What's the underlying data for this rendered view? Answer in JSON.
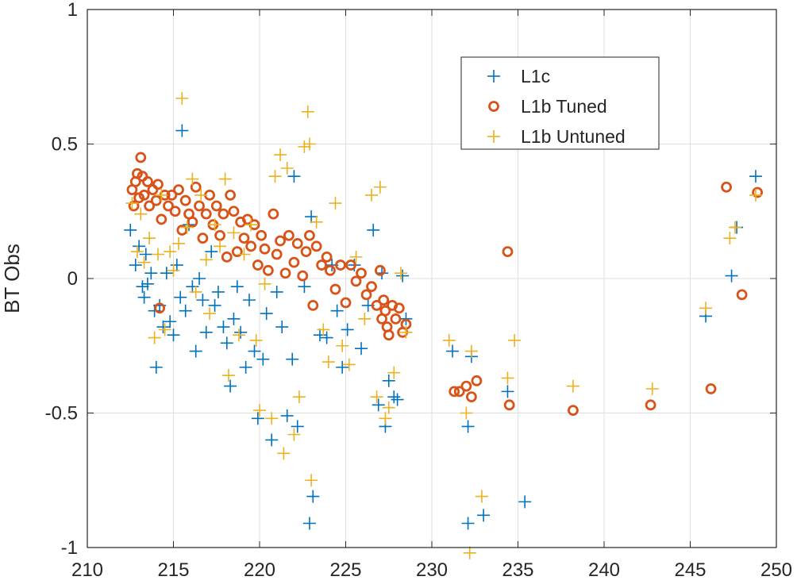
{
  "chart_data": {
    "type": "scatter",
    "title": "",
    "xlabel": "",
    "ylabel": "BT Obs",
    "xlim": [
      210,
      250
    ],
    "ylim": [
      -1,
      1
    ],
    "xticks": [
      210,
      215,
      220,
      225,
      230,
      235,
      240,
      245,
      250
    ],
    "yticks": [
      -1,
      -0.5,
      0,
      0.5,
      1
    ],
    "xtick_labels": [
      "210",
      "215",
      "220",
      "225",
      "230",
      "235",
      "240",
      "245",
      "250"
    ],
    "ytick_labels": [
      "-1",
      "-0.5",
      "0",
      "0.5",
      "1"
    ],
    "grid": true,
    "legend_position": "top-right",
    "series": [
      {
        "name": "L1c",
        "color": "#0072bd",
        "marker": "plus",
        "points": [
          [
            212.5,
            0.18
          ],
          [
            212.8,
            0.05
          ],
          [
            213.0,
            0.12
          ],
          [
            213.2,
            -0.03
          ],
          [
            213.5,
            -0.02
          ],
          [
            213.3,
            -0.07
          ],
          [
            213.7,
            0.02
          ],
          [
            213.4,
            0.09
          ],
          [
            213.9,
            -0.12
          ],
          [
            214.0,
            -0.33
          ],
          [
            214.2,
            -0.1
          ],
          [
            214.4,
            -0.18
          ],
          [
            214.6,
            0.02
          ],
          [
            214.8,
            -0.16
          ],
          [
            215.0,
            -0.21
          ],
          [
            215.2,
            0.05
          ],
          [
            215.5,
            0.55
          ],
          [
            215.4,
            -0.07
          ],
          [
            215.7,
            -0.12
          ],
          [
            215.9,
            0.2
          ],
          [
            216.1,
            -0.03
          ],
          [
            216.3,
            -0.27
          ],
          [
            216.5,
            0.0
          ],
          [
            216.7,
            -0.08
          ],
          [
            216.9,
            -0.2
          ],
          [
            217.2,
            0.1
          ],
          [
            217.4,
            -0.1
          ],
          [
            217.6,
            -0.05
          ],
          [
            217.9,
            -0.18
          ],
          [
            218.1,
            -0.24
          ],
          [
            218.3,
            -0.4
          ],
          [
            218.5,
            -0.15
          ],
          [
            218.7,
            -0.03
          ],
          [
            218.9,
            -0.2
          ],
          [
            219.2,
            -0.33
          ],
          [
            219.4,
            -0.08
          ],
          [
            219.7,
            -0.27
          ],
          [
            219.9,
            -0.52
          ],
          [
            220.2,
            -0.3
          ],
          [
            220.4,
            -0.13
          ],
          [
            220.7,
            -0.6
          ],
          [
            221.0,
            -0.05
          ],
          [
            221.3,
            -0.18
          ],
          [
            221.6,
            -0.51
          ],
          [
            221.9,
            -0.3
          ],
          [
            222.0,
            0.38
          ],
          [
            222.2,
            -0.55
          ],
          [
            222.6,
            -0.03
          ],
          [
            222.9,
            -0.91
          ],
          [
            223.1,
            -0.81
          ],
          [
            223.0,
            0.23
          ],
          [
            223.5,
            -0.21
          ],
          [
            223.9,
            -0.22
          ],
          [
            224.2,
            0.05
          ],
          [
            224.5,
            -0.12
          ],
          [
            224.8,
            -0.33
          ],
          [
            225.1,
            -0.19
          ],
          [
            225.5,
            0.05
          ],
          [
            225.9,
            -0.26
          ],
          [
            226.3,
            -0.1
          ],
          [
            226.6,
            0.18
          ],
          [
            226.9,
            -0.47
          ],
          [
            227.1,
            0.02
          ],
          [
            227.3,
            -0.55
          ],
          [
            227.5,
            -0.38
          ],
          [
            227.8,
            -0.44
          ],
          [
            228.0,
            -0.45
          ],
          [
            228.3,
            0.01
          ],
          [
            228.5,
            -0.15
          ],
          [
            231.2,
            -0.27
          ],
          [
            232.1,
            -0.55
          ],
          [
            232.1,
            -0.91
          ],
          [
            232.3,
            -0.29
          ],
          [
            233.0,
            -0.88
          ],
          [
            234.4,
            -0.42
          ],
          [
            235.4,
            -0.83
          ],
          [
            245.9,
            -0.14
          ],
          [
            247.4,
            0.01
          ],
          [
            247.7,
            0.19
          ],
          [
            248.8,
            0.38
          ]
        ]
      },
      {
        "name": "L1b Tuned",
        "color": "#d95319",
        "marker": "circle",
        "points": [
          [
            212.6,
            0.33
          ],
          [
            212.7,
            0.27
          ],
          [
            212.8,
            0.36
          ],
          [
            212.9,
            0.39
          ],
          [
            213.0,
            0.3
          ],
          [
            213.1,
            0.45
          ],
          [
            213.2,
            0.38
          ],
          [
            213.3,
            0.31
          ],
          [
            213.5,
            0.36
          ],
          [
            213.6,
            0.27
          ],
          [
            213.8,
            0.33
          ],
          [
            214.0,
            0.29
          ],
          [
            214.1,
            0.35
          ],
          [
            214.2,
            -0.11
          ],
          [
            214.3,
            0.22
          ],
          [
            214.5,
            0.31
          ],
          [
            214.7,
            0.27
          ],
          [
            214.9,
            0.31
          ],
          [
            215.1,
            0.25
          ],
          [
            215.3,
            0.33
          ],
          [
            215.5,
            0.18
          ],
          [
            215.7,
            0.29
          ],
          [
            215.9,
            0.24
          ],
          [
            216.1,
            0.21
          ],
          [
            216.3,
            0.34
          ],
          [
            216.5,
            0.27
          ],
          [
            216.7,
            0.15
          ],
          [
            216.9,
            0.24
          ],
          [
            217.1,
            0.31
          ],
          [
            217.3,
            0.2
          ],
          [
            217.5,
            0.27
          ],
          [
            217.7,
            0.16
          ],
          [
            217.9,
            0.24
          ],
          [
            218.1,
            0.08
          ],
          [
            218.3,
            0.31
          ],
          [
            218.5,
            0.25
          ],
          [
            218.7,
            0.1
          ],
          [
            218.9,
            0.21
          ],
          [
            219.1,
            0.15
          ],
          [
            219.3,
            0.22
          ],
          [
            219.5,
            0.12
          ],
          [
            219.7,
            0.2
          ],
          [
            219.9,
            0.05
          ],
          [
            220.1,
            0.16
          ],
          [
            220.3,
            0.11
          ],
          [
            220.5,
            0.03
          ],
          [
            220.8,
            0.24
          ],
          [
            221.0,
            0.09
          ],
          [
            221.2,
            0.14
          ],
          [
            221.5,
            0.02
          ],
          [
            221.7,
            0.16
          ],
          [
            222.0,
            0.06
          ],
          [
            222.2,
            0.13
          ],
          [
            222.5,
            0.01
          ],
          [
            222.7,
            0.1
          ],
          [
            222.9,
            0.16
          ],
          [
            223.1,
            -0.1
          ],
          [
            223.3,
            0.12
          ],
          [
            223.6,
            0.05
          ],
          [
            223.9,
            0.08
          ],
          [
            224.1,
            0.03
          ],
          [
            224.4,
            -0.04
          ],
          [
            224.7,
            0.05
          ],
          [
            225.0,
            -0.09
          ],
          [
            225.3,
            0.05
          ],
          [
            225.6,
            -0.01
          ],
          [
            225.9,
            0.02
          ],
          [
            226.2,
            -0.06
          ],
          [
            226.5,
            -0.03
          ],
          [
            226.8,
            -0.1
          ],
          [
            227.0,
            0.03
          ],
          [
            227.1,
            -0.15
          ],
          [
            227.2,
            -0.08
          ],
          [
            227.3,
            -0.12
          ],
          [
            227.4,
            -0.18
          ],
          [
            227.5,
            -0.21
          ],
          [
            227.7,
            -0.1
          ],
          [
            227.9,
            -0.15
          ],
          [
            228.1,
            -0.11
          ],
          [
            228.3,
            -0.2
          ],
          [
            228.5,
            -0.17
          ],
          [
            231.3,
            -0.42
          ],
          [
            231.6,
            -0.42
          ],
          [
            232.0,
            -0.4
          ],
          [
            232.3,
            -0.44
          ],
          [
            232.6,
            -0.38
          ],
          [
            234.4,
            0.1
          ],
          [
            234.5,
            -0.47
          ],
          [
            238.2,
            -0.49
          ],
          [
            242.7,
            -0.47
          ],
          [
            246.2,
            -0.41
          ],
          [
            247.1,
            0.34
          ],
          [
            248.0,
            -0.06
          ],
          [
            248.9,
            0.32
          ]
        ]
      },
      {
        "name": "L1b Untuned",
        "color": "#edb120",
        "marker": "plus",
        "points": [
          [
            212.6,
            0.28
          ],
          [
            212.9,
            0.1
          ],
          [
            213.1,
            0.24
          ],
          [
            213.3,
            0.06
          ],
          [
            213.6,
            0.15
          ],
          [
            213.9,
            -0.22
          ],
          [
            214.1,
            0.09
          ],
          [
            214.3,
            0.31
          ],
          [
            214.5,
            -0.19
          ],
          [
            214.8,
            0.1
          ],
          [
            215.0,
            0.03
          ],
          [
            215.3,
            0.13
          ],
          [
            215.5,
            0.67
          ],
          [
            215.8,
            0.19
          ],
          [
            216.1,
            0.37
          ],
          [
            216.3,
            -0.05
          ],
          [
            216.6,
            0.31
          ],
          [
            216.9,
            0.07
          ],
          [
            217.1,
            -0.13
          ],
          [
            217.4,
            0.2
          ],
          [
            217.7,
            0.12
          ],
          [
            218.0,
            0.37
          ],
          [
            218.2,
            -0.36
          ],
          [
            218.5,
            0.17
          ],
          [
            218.8,
            -0.21
          ],
          [
            219.1,
            0.09
          ],
          [
            219.5,
            0.2
          ],
          [
            219.8,
            -0.23
          ],
          [
            220.0,
            -0.49
          ],
          [
            220.3,
            -0.02
          ],
          [
            220.7,
            -0.52
          ],
          [
            220.9,
            0.38
          ],
          [
            221.2,
            0.46
          ],
          [
            221.4,
            -0.65
          ],
          [
            221.6,
            0.41
          ],
          [
            222.0,
            -0.58
          ],
          [
            222.3,
            -0.44
          ],
          [
            222.6,
            0.49
          ],
          [
            222.8,
            0.62
          ],
          [
            222.9,
            0.5
          ],
          [
            223.0,
            -0.75
          ],
          [
            223.3,
            0.21
          ],
          [
            223.7,
            -0.19
          ],
          [
            224.0,
            -0.31
          ],
          [
            224.4,
            0.28
          ],
          [
            224.8,
            -0.25
          ],
          [
            225.2,
            -0.32
          ],
          [
            225.6,
            0.08
          ],
          [
            226.1,
            -0.15
          ],
          [
            226.5,
            0.31
          ],
          [
            226.8,
            -0.44
          ],
          [
            227.0,
            0.34
          ],
          [
            227.3,
            -0.52
          ],
          [
            227.5,
            -0.48
          ],
          [
            227.8,
            -0.35
          ],
          [
            228.2,
            0.02
          ],
          [
            228.5,
            -0.2
          ],
          [
            231.0,
            -0.23
          ],
          [
            232.0,
            -0.5
          ],
          [
            232.2,
            -1.02
          ],
          [
            232.3,
            -0.27
          ],
          [
            232.9,
            -0.81
          ],
          [
            234.4,
            -0.37
          ],
          [
            234.8,
            -0.23
          ],
          [
            238.2,
            -0.4
          ],
          [
            242.8,
            -0.41
          ],
          [
            245.9,
            -0.11
          ],
          [
            247.3,
            0.15
          ],
          [
            247.6,
            0.19
          ],
          [
            248.8,
            0.31
          ]
        ]
      }
    ]
  }
}
